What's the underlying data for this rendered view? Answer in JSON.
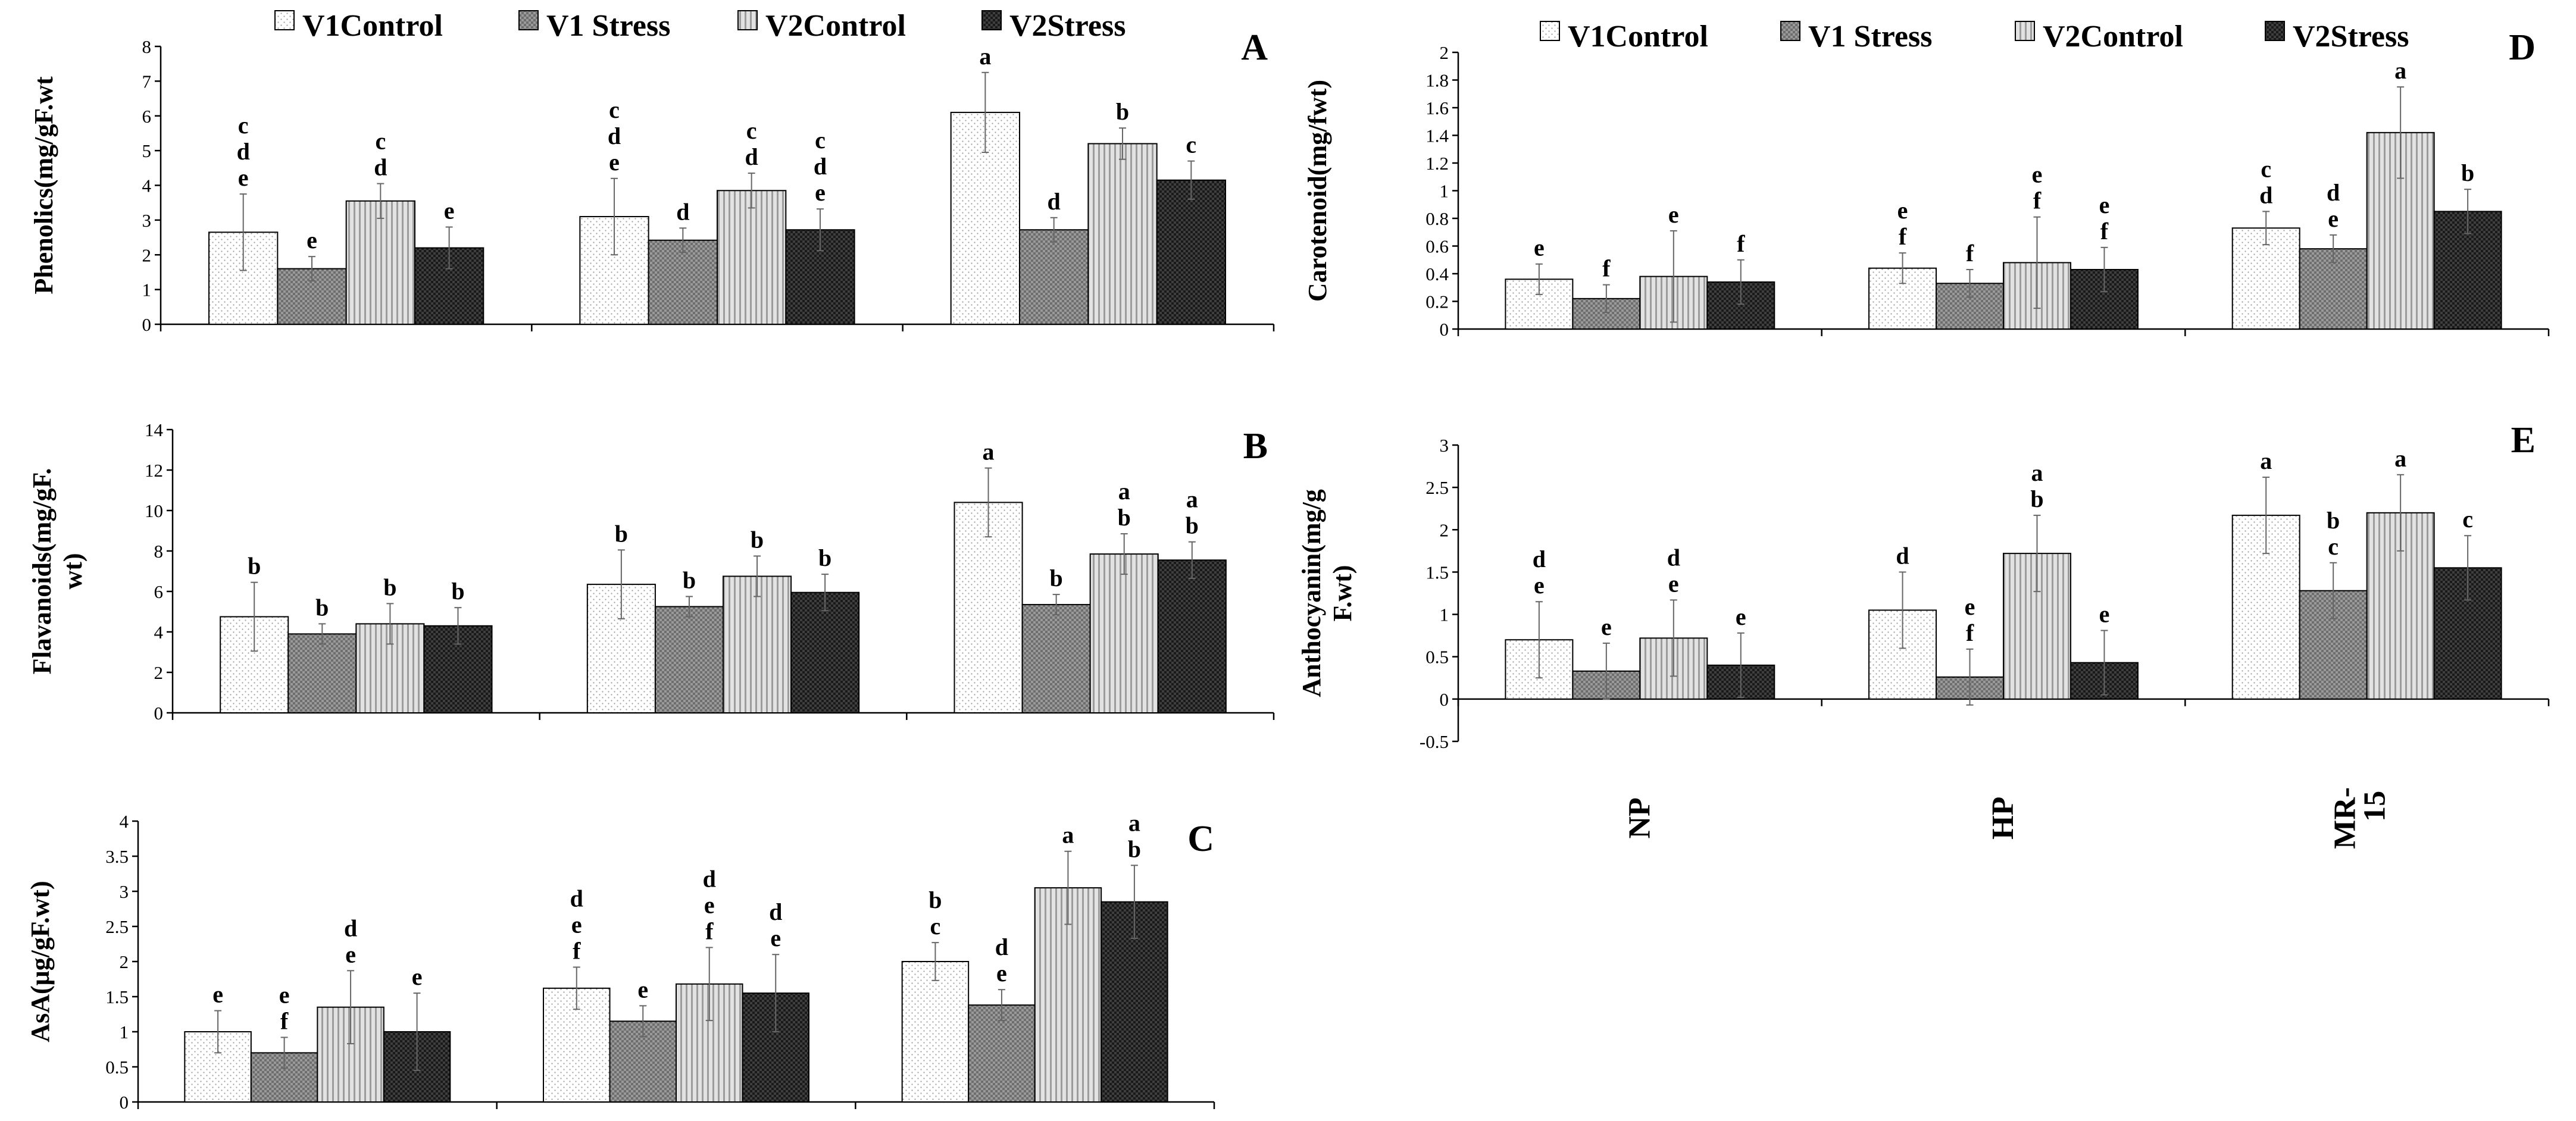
{
  "legend": [
    {
      "key": "V1Control",
      "label": "V1Control",
      "pattern": "dots"
    },
    {
      "key": "V1Stress",
      "label": "V1 Stress",
      "pattern": "checker"
    },
    {
      "key": "V2Control",
      "label": "V2Control",
      "pattern": "stripes"
    },
    {
      "key": "V2Stress",
      "label": "V2Stress",
      "pattern": "darkcheck"
    }
  ],
  "colors": {
    "frame": "#000000",
    "errorbar": "#555555",
    "dots": "#ffffff",
    "checker": "#8a8a8a",
    "stripes": "#d0d0d0",
    "darkcheck": "#222222"
  },
  "categories": [
    "NP",
    "HP",
    "MR-15"
  ],
  "chart_data": [
    {
      "type": "bar",
      "id": "A",
      "panel_label": "A",
      "title": "",
      "ylabel": "Phenolics(mg/gF.wt",
      "ylim": [
        0,
        8
      ],
      "yticks": [
        "0",
        "1",
        "2",
        "3",
        "4",
        "5",
        "6",
        "7",
        "8"
      ],
      "categories": [
        "NP",
        "HP",
        "MR-15"
      ],
      "show_category_labels": false,
      "series": [
        {
          "name": "V1Control",
          "values": [
            2.65,
            3.1,
            6.1
          ],
          "errors": [
            1.1,
            1.1,
            1.15
          ],
          "letters": [
            [
              "c",
              "d",
              "e"
            ],
            [
              "c",
              "d",
              "e"
            ],
            [
              "a"
            ]
          ]
        },
        {
          "name": "V1 Stress",
          "values": [
            1.6,
            2.42,
            2.72
          ],
          "errors": [
            0.35,
            0.35,
            0.35
          ],
          "letters": [
            [
              "e"
            ],
            [
              "d"
            ],
            [
              "d"
            ]
          ]
        },
        {
          "name": "V2Control",
          "values": [
            3.55,
            3.85,
            5.2
          ],
          "errors": [
            0.5,
            0.5,
            0.45
          ],
          "letters": [
            [
              "c",
              "d"
            ],
            [
              "c",
              "d"
            ],
            [
              "b"
            ]
          ]
        },
        {
          "name": "V2Stress",
          "values": [
            2.2,
            2.72,
            4.15
          ],
          "errors": [
            0.6,
            0.6,
            0.55
          ],
          "letters": [
            [
              "e"
            ],
            [
              "c",
              "d",
              "e"
            ],
            [
              "c"
            ]
          ]
        }
      ]
    },
    {
      "type": "bar",
      "id": "B",
      "panel_label": "B",
      "title": "",
      "ylabel": "Flavanoids(mg/gF. wt)",
      "ylim": [
        0,
        14
      ],
      "yticks": [
        "0",
        "2",
        "4",
        "6",
        "8",
        "10",
        "12",
        "14"
      ],
      "categories": [
        "NP",
        "HP",
        "MR-15"
      ],
      "show_category_labels": false,
      "series": [
        {
          "name": "V1Control",
          "values": [
            4.75,
            6.35,
            10.4
          ],
          "errors": [
            1.7,
            1.7,
            1.7
          ],
          "letters": [
            [
              "b"
            ],
            [
              "b"
            ],
            [
              "a"
            ]
          ]
        },
        {
          "name": "V1 Stress",
          "values": [
            3.9,
            5.25,
            5.35
          ],
          "errors": [
            0.5,
            0.5,
            0.5
          ],
          "letters": [
            [
              "b"
            ],
            [
              "b"
            ],
            [
              "b"
            ]
          ]
        },
        {
          "name": "V2Control",
          "values": [
            4.4,
            6.75,
            7.85
          ],
          "errors": [
            1.0,
            1.0,
            1.0
          ],
          "letters": [
            [
              "b"
            ],
            [
              "b"
            ],
            [
              "a",
              "b"
            ]
          ]
        },
        {
          "name": "V2Stress",
          "values": [
            4.3,
            5.95,
            7.55
          ],
          "errors": [
            0.9,
            0.9,
            0.9
          ],
          "letters": [
            [
              "b"
            ],
            [
              "b"
            ],
            [
              "a",
              "b"
            ]
          ]
        }
      ]
    },
    {
      "type": "bar",
      "id": "C",
      "panel_label": "C",
      "title": "",
      "ylabel": "AsA(μg/gF.wt)",
      "ylim": [
        0,
        4
      ],
      "yticks": [
        "0",
        "0.5",
        "1",
        "1.5",
        "2",
        "2.5",
        "3",
        "3.5",
        "4"
      ],
      "categories": [
        "NP",
        "HP",
        "MR-15"
      ],
      "show_category_labels": false,
      "series": [
        {
          "name": "V1Control",
          "values": [
            1.0,
            1.62,
            2.0
          ],
          "errors": [
            0.3,
            0.3,
            0.27
          ],
          "letters": [
            [
              "e"
            ],
            [
              "d",
              "e",
              "f"
            ],
            [
              "b",
              "c"
            ]
          ]
        },
        {
          "name": "V1 Stress",
          "values": [
            0.7,
            1.15,
            1.38
          ],
          "errors": [
            0.22,
            0.22,
            0.22
          ],
          "letters": [
            [
              "e",
              "f"
            ],
            [
              "e"
            ],
            [
              "d",
              "e"
            ]
          ]
        },
        {
          "name": "V2Control",
          "values": [
            1.35,
            1.68,
            3.05
          ],
          "errors": [
            0.52,
            0.52,
            0.52
          ],
          "letters": [
            [
              "d",
              "e"
            ],
            [
              "d",
              "e",
              "f"
            ],
            [
              "a"
            ]
          ]
        },
        {
          "name": "V2Stress",
          "values": [
            1.0,
            1.55,
            2.85
          ],
          "errors": [
            0.55,
            0.55,
            0.52
          ],
          "letters": [
            [
              "e"
            ],
            [
              "d",
              "e"
            ],
            [
              "a",
              "b"
            ]
          ]
        }
      ]
    },
    {
      "type": "bar",
      "id": "D",
      "panel_label": "D",
      "title": "",
      "ylabel": "Carotenoid(mg/fwt)",
      "ylim": [
        0,
        2
      ],
      "yticks": [
        "0",
        "0.2",
        "0.4",
        "0.6",
        "0.8",
        "1",
        "1.2",
        "1.4",
        "1.6",
        "1.8",
        "2"
      ],
      "categories": [
        "NP",
        "HP",
        "MR-15"
      ],
      "show_category_labels": false,
      "series": [
        {
          "name": "V1Control",
          "values": [
            0.36,
            0.44,
            0.73
          ],
          "errors": [
            0.11,
            0.11,
            0.12
          ],
          "letters": [
            [
              "e"
            ],
            [
              "e",
              "f"
            ],
            [
              "c",
              "d"
            ]
          ]
        },
        {
          "name": "V1 Stress",
          "values": [
            0.22,
            0.33,
            0.58
          ],
          "errors": [
            0.1,
            0.1,
            0.1
          ],
          "letters": [
            [
              "f"
            ],
            [
              "f"
            ],
            [
              "d",
              "e"
            ]
          ]
        },
        {
          "name": "V2Control",
          "values": [
            0.38,
            0.48,
            1.42
          ],
          "errors": [
            0.33,
            0.33,
            0.33
          ],
          "letters": [
            [
              "e"
            ],
            [
              "e",
              "f"
            ],
            [
              "a"
            ]
          ]
        },
        {
          "name": "V2Stress",
          "values": [
            0.34,
            0.43,
            0.85
          ],
          "errors": [
            0.16,
            0.16,
            0.16
          ],
          "letters": [
            [
              "f"
            ],
            [
              "e",
              "f"
            ],
            [
              "b"
            ]
          ]
        }
      ]
    },
    {
      "type": "bar",
      "id": "E",
      "panel_label": "E",
      "title": "",
      "ylabel": "Anthocyanin(mg/g F.wt)",
      "ylim": [
        -0.5,
        3
      ],
      "yticks": [
        "-0.5",
        "0",
        "0.5",
        "1",
        "1.5",
        "2",
        "2.5",
        "3"
      ],
      "categories": [
        "NP",
        "HP",
        "MR-15"
      ],
      "show_category_labels": true,
      "series": [
        {
          "name": "V1Control",
          "values": [
            0.7,
            1.05,
            2.17
          ],
          "errors": [
            0.45,
            0.45,
            0.45
          ],
          "letters": [
            [
              "d",
              "e"
            ],
            [
              "d"
            ],
            [
              "a"
            ]
          ]
        },
        {
          "name": "V1 Stress",
          "values": [
            0.33,
            0.26,
            1.28
          ],
          "errors": [
            0.33,
            0.33,
            0.33
          ],
          "letters": [
            [
              "e"
            ],
            [
              "e",
              "f"
            ],
            [
              "b",
              "c"
            ]
          ]
        },
        {
          "name": "V2Control",
          "values": [
            0.72,
            1.72,
            2.2
          ],
          "errors": [
            0.45,
            0.45,
            0.45
          ],
          "letters": [
            [
              "d",
              "e"
            ],
            [
              "a",
              "b"
            ],
            [
              "a"
            ]
          ]
        },
        {
          "name": "V2Stress",
          "values": [
            0.4,
            0.43,
            1.55
          ],
          "errors": [
            0.38,
            0.38,
            0.38
          ],
          "letters": [
            [
              "e"
            ],
            [
              "e"
            ],
            [
              "c"
            ]
          ]
        }
      ]
    }
  ]
}
